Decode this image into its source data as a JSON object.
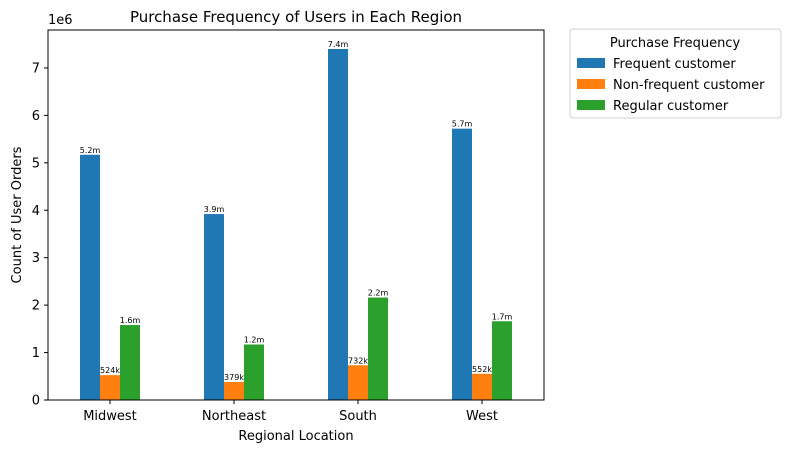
{
  "chart_data": {
    "type": "bar",
    "title": "Purchase Frequency of Users in Each Region",
    "xlabel": "Regional Location",
    "ylabel": "Count of User Orders",
    "y_offset_label": "1e6",
    "categories": [
      "Midwest",
      "Northeast",
      "South",
      "West"
    ],
    "series": [
      {
        "name": "Frequent customer",
        "color": "#1f77b4",
        "values": [
          5.17,
          3.92,
          7.4,
          5.72
        ],
        "labels": [
          "5.2m",
          "3.9m",
          "7.4m",
          "5.7m"
        ]
      },
      {
        "name": "Non-frequent customer",
        "color": "#ff7f0e",
        "values": [
          0.524,
          0.379,
          0.732,
          0.552
        ],
        "labels": [
          "524k",
          "379k",
          "732k",
          "552k"
        ]
      },
      {
        "name": "Regular customer",
        "color": "#2ca02c",
        "values": [
          1.58,
          1.17,
          2.16,
          1.66
        ],
        "labels": [
          "1.6m",
          "1.2m",
          "2.2m",
          "1.7m"
        ]
      }
    ],
    "ylim": [
      0,
      7.8
    ],
    "yticks": [
      0,
      1,
      2,
      3,
      4,
      5,
      6,
      7
    ],
    "grid": false,
    "legend": {
      "title": "Purchase Frequency",
      "placement": "outside-top-right"
    }
  }
}
